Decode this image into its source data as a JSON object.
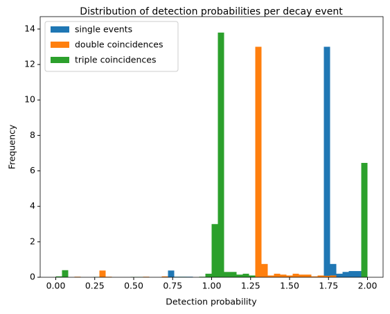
{
  "chart_data": {
    "type": "histogram",
    "title": "Distribution of detection probabilities per decay event",
    "xlabel": "Detection probability",
    "ylabel": "Frequency",
    "bins": [
      0,
      0.04,
      0.08,
      0.12,
      0.16,
      0.2,
      0.24,
      0.28,
      0.32,
      0.36,
      0.4,
      0.44,
      0.48,
      0.52,
      0.56,
      0.6,
      0.64,
      0.68,
      0.72,
      0.76,
      0.8,
      0.84,
      0.88,
      0.92,
      0.96,
      1.0,
      1.04,
      1.08,
      1.12,
      1.16,
      1.2,
      1.24,
      1.28,
      1.32,
      1.36,
      1.4,
      1.44,
      1.48,
      1.52,
      1.56,
      1.6,
      1.64,
      1.68,
      1.72,
      1.76,
      1.8,
      1.84,
      1.88,
      1.92,
      1.96,
      2.0
    ],
    "series": [
      {
        "name": "single events",
        "color": "#1f77b4",
        "values": [
          0,
          0,
          0,
          0,
          0,
          0,
          0,
          0,
          0,
          0,
          0,
          0,
          0,
          0,
          0,
          0,
          0,
          0,
          0.38,
          0.03,
          0.03,
          0.03,
          0,
          0,
          0,
          0,
          0,
          0,
          0,
          0,
          0,
          0,
          0,
          0,
          0,
          0,
          0,
          0,
          0,
          0,
          0,
          0,
          0,
          13.0,
          0.75,
          0.2,
          0.3,
          0.35,
          0.35,
          0.3
        ]
      },
      {
        "name": "double coincidences",
        "color": "#ff7f0e",
        "values": [
          0,
          0,
          0,
          0.03,
          0,
          0,
          0,
          0.38,
          0.03,
          0,
          0,
          0,
          0,
          0,
          0.03,
          0,
          0,
          0.05,
          0,
          0,
          0,
          0,
          0,
          0,
          0,
          0,
          0,
          0,
          0,
          0,
          0,
          0,
          13.0,
          0.75,
          0.1,
          0.2,
          0.15,
          0.1,
          0.2,
          0.15,
          0.15,
          0.05,
          0.1,
          0.08,
          0.1,
          0,
          0,
          0,
          0,
          0
        ]
      },
      {
        "name": "triple coincidences",
        "color": "#2ca02c",
        "values": [
          0.05,
          0.4,
          0,
          0,
          0,
          0,
          0.02,
          0,
          0,
          0,
          0,
          0,
          0.02,
          0.02,
          0,
          0,
          0,
          0,
          0,
          0.02,
          0.02,
          0,
          0,
          0.03,
          0.2,
          3.0,
          13.8,
          0.3,
          0.3,
          0.15,
          0.2,
          0.1,
          0,
          0,
          0,
          0,
          0,
          0,
          0,
          0,
          0,
          0,
          0,
          0,
          0,
          0,
          0,
          0,
          0,
          6.45
        ]
      }
    ],
    "xlim": [
      -0.1,
      2.1
    ],
    "ylim": [
      0,
      14.7
    ],
    "xticks": [
      {
        "value": 0,
        "label": "0.00"
      },
      {
        "value": 0.25,
        "label": "0.25"
      },
      {
        "value": 0.5,
        "label": "0.50"
      },
      {
        "value": 0.75,
        "label": "0.75"
      },
      {
        "value": 1.0,
        "label": "1.00"
      },
      {
        "value": 1.25,
        "label": "1.25"
      },
      {
        "value": 1.5,
        "label": "1.50"
      },
      {
        "value": 1.75,
        "label": "1.75"
      },
      {
        "value": 2.0,
        "label": "2.00"
      }
    ],
    "yticks": [
      0,
      2,
      4,
      6,
      8,
      10,
      12,
      14
    ],
    "grid": false,
    "legend": "upper left"
  }
}
